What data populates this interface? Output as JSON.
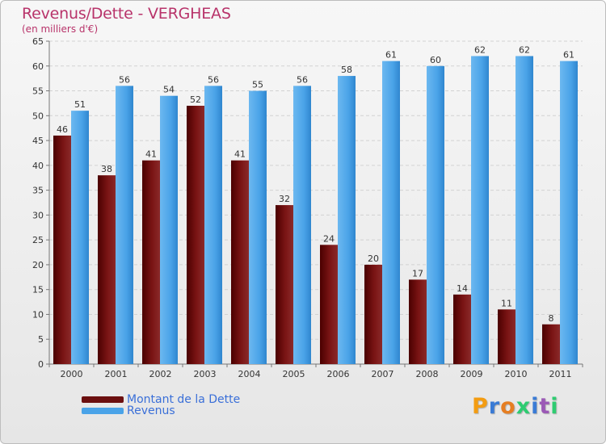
{
  "header": {
    "title": "Revenus/Dette - VERGHEAS",
    "subtitle": "(en milliers d'€)"
  },
  "chart_data": {
    "type": "bar",
    "categories": [
      "2000",
      "2001",
      "2002",
      "2003",
      "2004",
      "2005",
      "2006",
      "2007",
      "2008",
      "2009",
      "2010",
      "2011"
    ],
    "series": [
      {
        "name": "Montant de la Dette",
        "values": [
          46,
          38,
          41,
          52,
          41,
          32,
          24,
          20,
          17,
          14,
          11,
          8
        ],
        "color": "#7a1010"
      },
      {
        "name": "Revenus",
        "values": [
          51,
          56,
          54,
          56,
          55,
          56,
          58,
          61,
          60,
          62,
          62,
          61
        ],
        "color": "#4aa3e8"
      }
    ],
    "ylim": [
      0,
      65
    ],
    "yticks": [
      0,
      5,
      10,
      15,
      20,
      25,
      30,
      35,
      40,
      45,
      50,
      55,
      60,
      65
    ],
    "grid": true,
    "legend": "bottom-left"
  },
  "legend": {
    "items": [
      {
        "label": "Montant de la Dette",
        "color": "#6b0f0f"
      },
      {
        "label": "Revenus",
        "color": "#4aa3e8"
      }
    ]
  },
  "logo": {
    "text": "Proxiti"
  }
}
